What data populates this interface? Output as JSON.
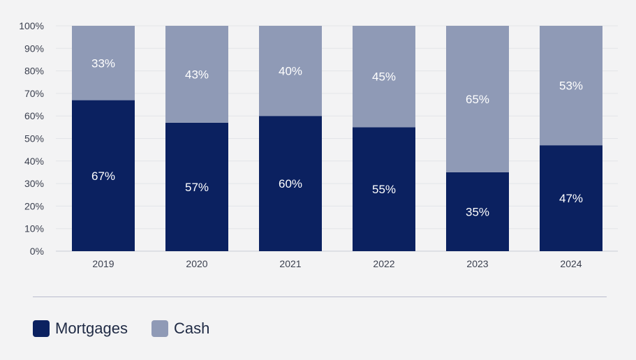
{
  "chart_data": {
    "type": "bar",
    "stacked": true,
    "categories": [
      "2019",
      "2020",
      "2021",
      "2022",
      "2023",
      "2024"
    ],
    "series": [
      {
        "name": "Mortgages",
        "values": [
          67,
          57,
          60,
          55,
          35,
          47
        ],
        "labels": [
          "67%",
          "57%",
          "60%",
          "55%",
          "35%",
          "47%"
        ],
        "color": "#0b2160"
      },
      {
        "name": "Cash",
        "values": [
          33,
          43,
          40,
          45,
          65,
          53
        ],
        "labels": [
          "33%",
          "43%",
          "40%",
          "45%",
          "65%",
          "53%"
        ],
        "color": "#8f9ab6"
      }
    ],
    "ylim": [
      0,
      100
    ],
    "yticks": [
      "0%",
      "10%",
      "20%",
      "30%",
      "40%",
      "50%",
      "60%",
      "70%",
      "80%",
      "90%",
      "100%"
    ],
    "title": "",
    "xlabel": "",
    "ylabel": "",
    "grid": true,
    "legend_position": "bottom-left"
  }
}
